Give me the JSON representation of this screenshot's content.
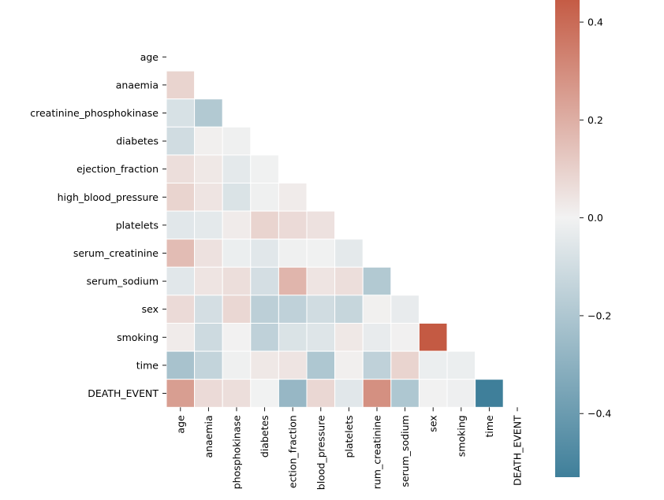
{
  "chart_data": {
    "type": "heatmap",
    "variables": [
      "age",
      "anaemia",
      "creatinine_phosphokinase",
      "diabetes",
      "ejection_fraction",
      "high_blood_pressure",
      "platelets",
      "serum_creatinine",
      "serum_sodium",
      "sex",
      "smoking",
      "time",
      "DEATH_EVENT"
    ],
    "x_tick_labels": [
      "age",
      "anaemia",
      "phosphokinase",
      "diabetes",
      "ection_fraction",
      "blood_pressure",
      "platelets",
      "rum_creatinine",
      "serum_sodium",
      "sex",
      "smoking",
      "time",
      "DEATH_EVENT"
    ],
    "mask": "upper-triangle",
    "values": [
      [
        null,
        null,
        null,
        null,
        null,
        null,
        null,
        null,
        null,
        null,
        null,
        null,
        null
      ],
      [
        0.09,
        null,
        null,
        null,
        null,
        null,
        null,
        null,
        null,
        null,
        null,
        null,
        null
      ],
      [
        -0.08,
        -0.19,
        null,
        null,
        null,
        null,
        null,
        null,
        null,
        null,
        null,
        null,
        null
      ],
      [
        -0.1,
        0.01,
        -0.01,
        null,
        null,
        null,
        null,
        null,
        null,
        null,
        null,
        null,
        null
      ],
      [
        0.06,
        0.03,
        -0.04,
        -0.005,
        null,
        null,
        null,
        null,
        null,
        null,
        null,
        null,
        null
      ],
      [
        0.09,
        0.04,
        -0.07,
        -0.01,
        0.02,
        null,
        null,
        null,
        null,
        null,
        null,
        null,
        null
      ],
      [
        -0.05,
        -0.04,
        0.02,
        0.09,
        0.07,
        0.05,
        null,
        null,
        null,
        null,
        null,
        null,
        null
      ],
      [
        0.16,
        0.05,
        -0.02,
        -0.05,
        -0.01,
        -0.005,
        -0.04,
        null,
        null,
        null,
        null,
        null,
        null
      ],
      [
        -0.05,
        0.04,
        0.06,
        -0.09,
        0.18,
        0.04,
        0.06,
        -0.19,
        null,
        null,
        null,
        null,
        null
      ],
      [
        0.07,
        -0.09,
        0.08,
        -0.16,
        -0.15,
        -0.1,
        -0.13,
        0.007,
        -0.03,
        null,
        null,
        null,
        null
      ],
      [
        0.02,
        -0.11,
        0.002,
        -0.15,
        -0.07,
        -0.06,
        0.03,
        -0.03,
        0.005,
        0.45,
        null,
        null,
        null
      ],
      [
        -0.22,
        -0.14,
        -0.01,
        0.03,
        0.04,
        -0.2,
        0.01,
        -0.15,
        0.09,
        -0.02,
        -0.02,
        null,
        null
      ],
      [
        0.25,
        0.07,
        0.06,
        -0.002,
        -0.27,
        0.08,
        -0.05,
        0.29,
        -0.2,
        -0.004,
        -0.013,
        -0.53,
        null
      ]
    ],
    "colorbar": {
      "min": -0.53,
      "max": 0.45,
      "ticks": [
        -0.4,
        -0.2,
        0.0,
        0.2,
        0.4
      ],
      "tick_labels": [
        "−0.4",
        "−0.2",
        "0.0",
        "0.2",
        "0.4"
      ]
    },
    "colors": {
      "negative": "#3f7f9a",
      "neutral": "#f2f2f2",
      "positive": "#c45a43"
    }
  }
}
